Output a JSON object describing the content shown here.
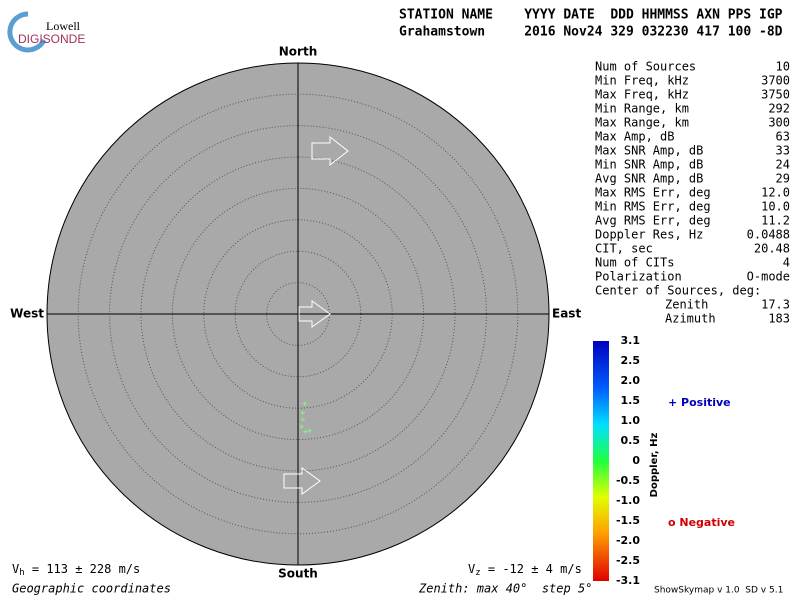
{
  "logo": {
    "top": "Lowell",
    "bottom": "DIGISONDE"
  },
  "header": {
    "line1": "STATION NAME    YYYY DATE  DDD HHMMSS AXN PPS IGP",
    "line2": "Grahamstown     2016 Nov24 329 032230 417 100 -8D"
  },
  "compass": {
    "north": "North",
    "south": "South",
    "east": "East",
    "west": "West"
  },
  "stats": [
    {
      "label": "Num of Sources",
      "value": "10"
    },
    {
      "label": "Min Freq, kHz",
      "value": "3700"
    },
    {
      "label": "Max Freq, kHz",
      "value": "3750"
    },
    {
      "label": "Min Range, km",
      "value": "292"
    },
    {
      "label": "Max Range, km",
      "value": "300"
    },
    {
      "label": "Max Amp, dB",
      "value": "63"
    },
    {
      "label": "Max SNR Amp, dB",
      "value": "33"
    },
    {
      "label": "Min SNR Amp, dB",
      "value": "24"
    },
    {
      "label": "Avg SNR Amp, dB",
      "value": "29"
    },
    {
      "label": "Max RMS Err, deg",
      "value": "12.0"
    },
    {
      "label": "Min RMS Err, deg",
      "value": "10.0"
    },
    {
      "label": "Avg RMS Err, deg",
      "value": "11.2"
    },
    {
      "label": "Doppler Res, Hz",
      "value": "0.0488"
    },
    {
      "label": "CIT, sec",
      "value": "20.48"
    },
    {
      "label": "Num of CITs",
      "value": "4"
    },
    {
      "label": "Polarization",
      "value": "O-mode"
    }
  ],
  "center": {
    "title": "Center of Sources, deg:",
    "zenith_label": "Zenith",
    "zenith": "17.3",
    "azimuth_label": "Azimuth",
    "azimuth": "183"
  },
  "colorbar": {
    "title": "Doppler, Hz",
    "ticks": [
      "3.1",
      "2.5",
      "2.0",
      "1.5",
      "1.0",
      "0.5",
      "0",
      "-0.5",
      "-1.0",
      "-1.5",
      "-2.0",
      "-2.5",
      "-3.1"
    ]
  },
  "legend": {
    "positive": "+ Positive",
    "negative": "o Negative"
  },
  "footer": {
    "vh_symbol": "V",
    "vh_sub": "h",
    "vh_text": " = 113 ± 228 m/s",
    "vz_symbol": "V",
    "vz_sub": "z",
    "vz_text": " = -12 ± 4 m/s",
    "coords": "Geographic coordinates",
    "zenith_info": "Zenith: max 40°  step 5°",
    "version": "ShowSkymap v 1.0  SD v 5.1"
  }
}
